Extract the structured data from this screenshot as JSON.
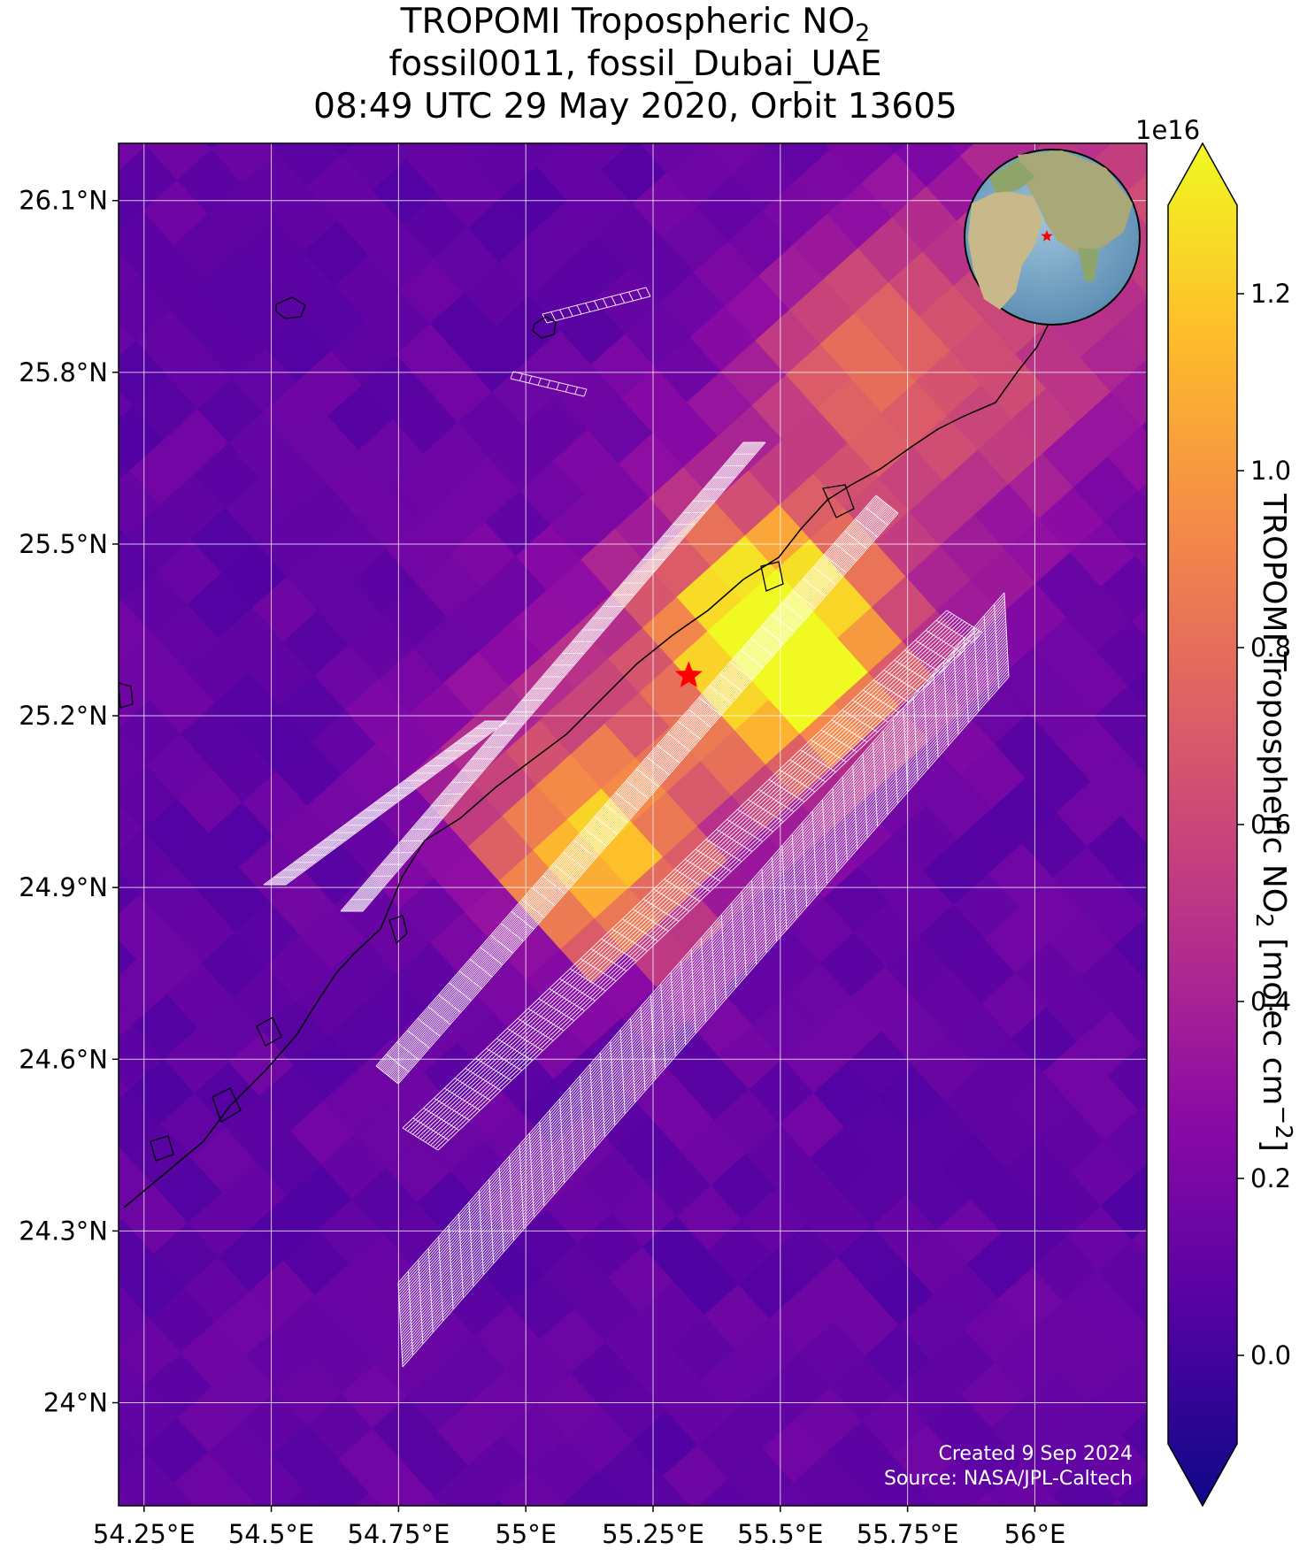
{
  "title": {
    "line1_prefix": "TROPOMI Tropospheric NO",
    "line1_sub": "2",
    "line2": "fossil0011, fossil_Dubai_UAE",
    "line3": "08:49 UTC 29 May 2020, Orbit 13605"
  },
  "credits": {
    "created": "Created 9 Sep 2024",
    "source": "Source: NASA/JPL-Caltech"
  },
  "colorbar": {
    "exponent_label": "1e16",
    "label_prefix": "TROPOMI Tropospheric NO",
    "label_sub": "2",
    "label_units": " [molec cm",
    "label_sup": "−2",
    "label_end": "]",
    "range": [
      -0.1,
      1.3
    ],
    "ticks": [
      "0.0",
      "0.2",
      "0.4",
      "0.6",
      "0.8",
      "1.0",
      "1.2"
    ],
    "tick_values": [
      0.0,
      0.2,
      0.4,
      0.6,
      0.8,
      1.0,
      1.2
    ],
    "colormap": "plasma",
    "extend": "both"
  },
  "chart_data": {
    "type": "heatmap",
    "map_projection": "PlateCarree",
    "xlim": [
      54.2,
      56.22
    ],
    "ylim": [
      23.82,
      26.2
    ],
    "x_ticks": [
      54.25,
      54.5,
      54.75,
      55.0,
      55.25,
      55.5,
      55.75,
      56.0
    ],
    "x_tick_labels": [
      "54.25°E",
      "54.5°E",
      "54.75°E",
      "55°E",
      "55.25°E",
      "55.5°E",
      "55.75°E",
      "56°E"
    ],
    "y_ticks": [
      26.1,
      25.8,
      25.5,
      25.2,
      24.9,
      24.6,
      24.3,
      24.0
    ],
    "y_tick_labels": [
      "26.1°N",
      "25.8°N",
      "25.5°N",
      "25.2°N",
      "24.9°N",
      "24.6°N",
      "24.3°N",
      "24°N"
    ],
    "grid": true,
    "target": {
      "name": "fossil_Dubai_UAE",
      "lon": 55.32,
      "lat": 25.27,
      "marker": "red-star"
    },
    "field_background_value": 0.15,
    "plume_axis_start": {
      "lon": 55.05,
      "lat": 24.95
    },
    "plume_axis_end": {
      "lon": 56.2,
      "lat": 26.15
    },
    "plume_peak_value": 1.15,
    "hotspots": [
      {
        "lon": 55.55,
        "lat": 25.27,
        "value": 1.2
      },
      {
        "lon": 55.45,
        "lat": 25.38,
        "value": 1.12
      },
      {
        "lon": 55.15,
        "lat": 24.96,
        "value": 1.1
      },
      {
        "lon": 55.65,
        "lat": 25.88,
        "value": 0.82
      }
    ],
    "colors": {
      "grid_lines": "#ffffff",
      "coastline": "#000000",
      "target_marker": "#ff0000",
      "grid_cells": "#ffffff"
    },
    "inset_globe": {
      "shows_target": true,
      "region": "Middle East"
    }
  }
}
